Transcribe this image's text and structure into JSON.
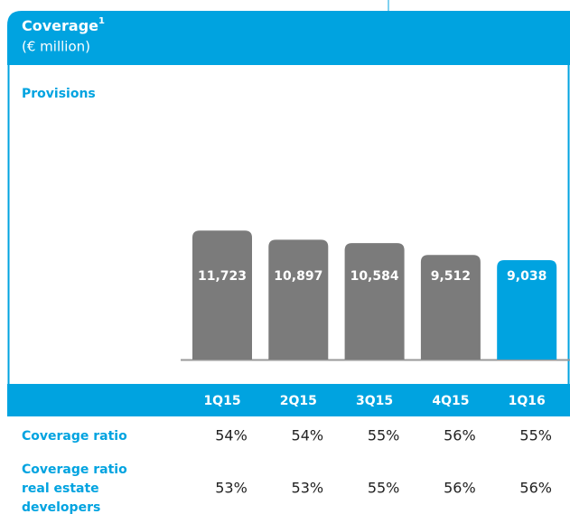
{
  "chart_data": {
    "type": "bar",
    "title": "Coverage",
    "title_superscript": "1",
    "subtitle": "(€ million)",
    "categories": [
      "1Q15",
      "2Q15",
      "3Q15",
      "4Q15",
      "1Q16"
    ],
    "series": [
      {
        "name": "Provisions",
        "colors": [
          "#7b7b7b",
          "#7b7b7b",
          "#7b7b7b",
          "#7b7b7b",
          "#00a3e0"
        ],
        "values": [
          11723,
          10897,
          10584,
          9512,
          9038
        ],
        "value_labels": [
          "11,723",
          "10,897",
          "10,584",
          "9,512",
          "9,038"
        ]
      }
    ],
    "ylim": [
      0,
      23000
    ]
  },
  "table": {
    "rows": [
      {
        "label_lines": [
          "Coverage ratio"
        ],
        "values": [
          54,
          54,
          55,
          56,
          55
        ],
        "value_labels": [
          "54%",
          "54%",
          "55%",
          "56%",
          "55%"
        ]
      },
      {
        "label_lines": [
          "Coverage ratio",
          "real estate",
          "developers"
        ],
        "values": [
          53,
          53,
          55,
          56,
          56
        ],
        "value_labels": [
          "53%",
          "53%",
          "55%",
          "56%",
          "56%"
        ]
      }
    ]
  }
}
